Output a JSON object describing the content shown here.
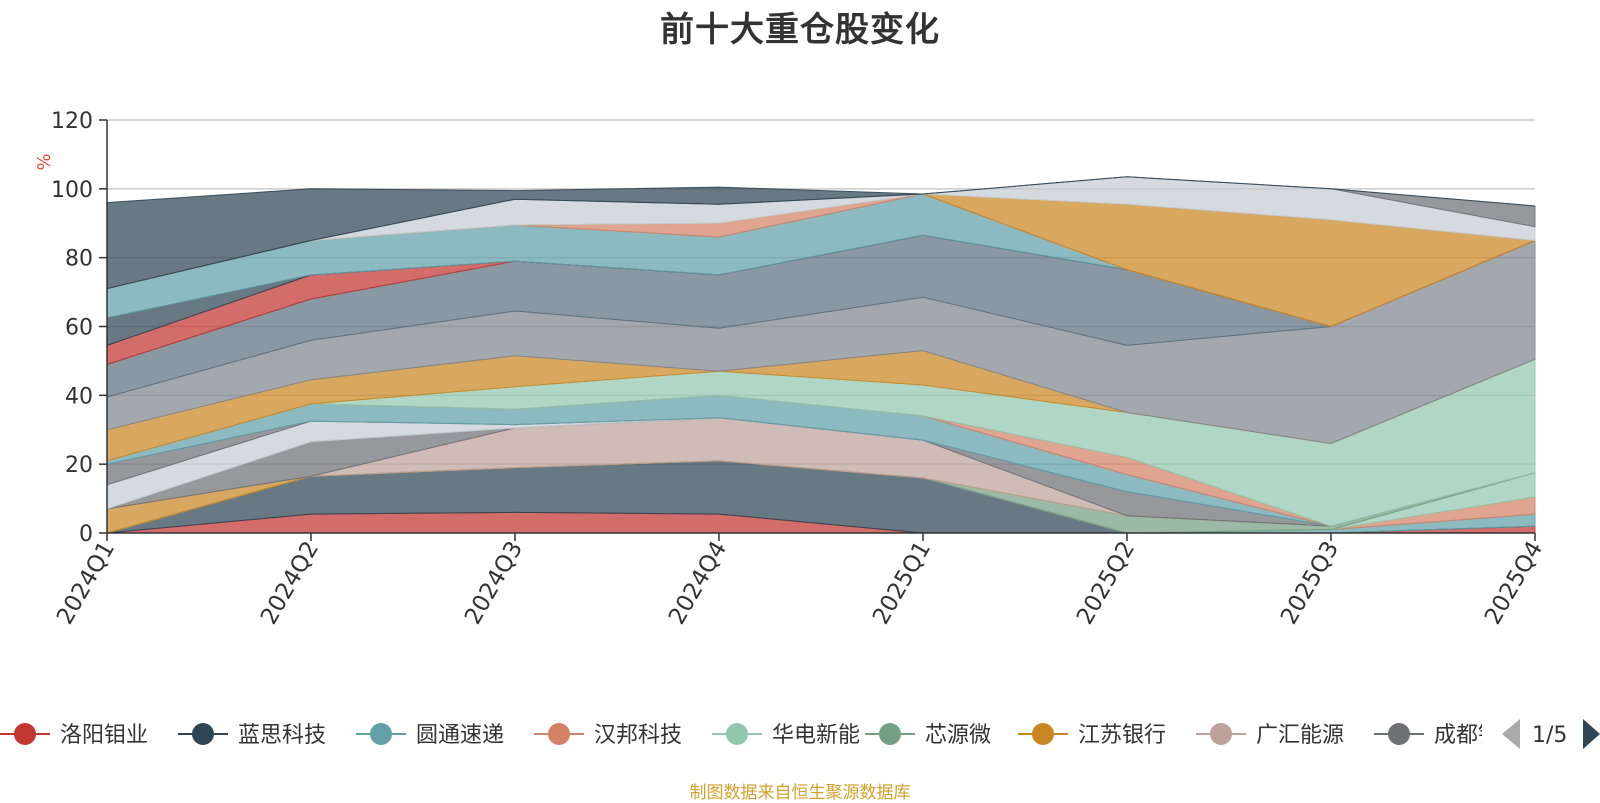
{
  "chart_data": {
    "type": "area",
    "title": "前十大重仓股变化",
    "ylabel": "%",
    "ylim": [
      0,
      120
    ],
    "yticks": [
      0,
      20,
      40,
      60,
      80,
      100,
      120
    ],
    "grid": true,
    "categories": [
      "2024Q1",
      "2024Q2",
      "2024Q3",
      "2024Q4",
      "2025Q1",
      "2025Q2",
      "2025Q3",
      "2025Q4"
    ],
    "series": [
      {
        "name": "洛阳钼业",
        "color": "#c23531",
        "values": [
          0,
          5.5,
          6,
          5.5,
          0,
          0,
          0,
          2
        ]
      },
      {
        "name": "蓝思科技",
        "color": "#2f4554",
        "values": [
          0,
          11,
          13,
          15.5,
          16,
          0,
          0,
          0
        ]
      },
      {
        "name": "圆通速递",
        "color": "#61a0a8",
        "values": [
          0,
          0,
          0,
          0,
          0,
          0,
          1,
          3.5
        ]
      },
      {
        "name": "汉邦科技",
        "color": "#d48265",
        "values": [
          0,
          0,
          0,
          0,
          0,
          0,
          0,
          5
        ]
      },
      {
        "name": "华电新能",
        "color": "#91c7ae",
        "values": [
          0,
          0,
          0,
          0,
          0,
          0,
          0,
          7
        ]
      },
      {
        "name": "芯源微",
        "color": "#749f83",
        "values": [
          0,
          0,
          0,
          0,
          0,
          5,
          1,
          0
        ]
      },
      {
        "name": "江苏银行",
        "color": "#ca8622",
        "values": [
          7,
          0,
          0,
          0,
          0,
          0,
          0,
          0
        ]
      },
      {
        "name": "广汇能源",
        "color": "#bda29a",
        "values": [
          0,
          0,
          11.5,
          12.5,
          11,
          0,
          0,
          0
        ]
      },
      {
        "name": "成都银行",
        "color": "#6e7074",
        "values": [
          0,
          10,
          0,
          0,
          0,
          7,
          0,
          0
        ]
      },
      {
        "name": "",
        "color": "#c4ccd3",
        "values": [
          7,
          6,
          1,
          0,
          0,
          0,
          0,
          0
        ]
      },
      {
        "name": "",
        "color": "#6e7074",
        "values": [
          6,
          0,
          0,
          0,
          0,
          0,
          0,
          0
        ]
      },
      {
        "name": "",
        "color": "#61a0a8",
        "values": [
          1,
          5,
          4.5,
          6.5,
          7,
          5,
          0,
          0
        ]
      },
      {
        "name": "",
        "color": "#d48265",
        "values": [
          0,
          0,
          0,
          0,
          0,
          5,
          0,
          0
        ]
      },
      {
        "name": "",
        "color": "#91c7ae",
        "values": [
          0,
          0,
          6.5,
          7,
          9,
          13,
          24,
          33
        ]
      },
      {
        "name": "",
        "color": "#ca8622",
        "values": [
          9,
          7,
          9,
          0,
          10,
          0,
          0,
          0
        ]
      },
      {
        "name": "",
        "color": "#7f868f",
        "values": [
          9.5,
          11.5,
          13,
          12.5,
          15.5,
          19.5,
          34,
          34.5
        ]
      },
      {
        "name": "",
        "color": "#5c7080",
        "values": [
          9.5,
          12,
          14.5,
          15.5,
          18,
          22,
          0,
          0
        ]
      },
      {
        "name": "",
        "color": "#c23531",
        "values": [
          5.5,
          7,
          0,
          0,
          0,
          0,
          0,
          0
        ]
      },
      {
        "name": "",
        "color": "#2f4554",
        "values": [
          8,
          0,
          0,
          0,
          0,
          0,
          0,
          0
        ]
      },
      {
        "name": "",
        "color": "#61a0a8",
        "values": [
          8.5,
          10,
          10.5,
          11,
          12,
          0,
          0,
          0
        ]
      },
      {
        "name": "",
        "color": "#d48265",
        "values": [
          0,
          0,
          0,
          4,
          0,
          0,
          0,
          0
        ]
      },
      {
        "name": "",
        "color": "#ca8622",
        "values": [
          0,
          0,
          0,
          0,
          0,
          19,
          31,
          0
        ]
      },
      {
        "name": "",
        "color": "#c4ccd3",
        "values": [
          0,
          0,
          7.5,
          5.5,
          0,
          8,
          9,
          4
        ]
      },
      {
        "name": "",
        "color": "#bda29a",
        "values": [
          0,
          0,
          0,
          0,
          0,
          0,
          0,
          0
        ]
      },
      {
        "name": "",
        "color": "#6e7074",
        "values": [
          0,
          0,
          0,
          0,
          0,
          0,
          0,
          6
        ]
      },
      {
        "name": "",
        "color": "#2f4554",
        "values": [
          25,
          15,
          2.5,
          5,
          0,
          0,
          0,
          0
        ]
      }
    ]
  },
  "legend": {
    "page": "1/5",
    "items": [
      {
        "name": "洛阳钼业",
        "color": "#c23531"
      },
      {
        "name": "蓝思科技",
        "color": "#2f4554"
      },
      {
        "name": "圆通速递",
        "color": "#61a0a8"
      },
      {
        "name": "汉邦科技",
        "color": "#d48265"
      },
      {
        "name": "华电新能",
        "color": "#91c7ae"
      },
      {
        "name": "芯源微",
        "color": "#749f83"
      },
      {
        "name": "江苏银行",
        "color": "#ca8622"
      },
      {
        "name": "广汇能源",
        "color": "#bda29a"
      },
      {
        "name": "成都银行",
        "color": "#6e7074"
      }
    ]
  },
  "source_note": "制图数据来自恒生聚源数据库"
}
